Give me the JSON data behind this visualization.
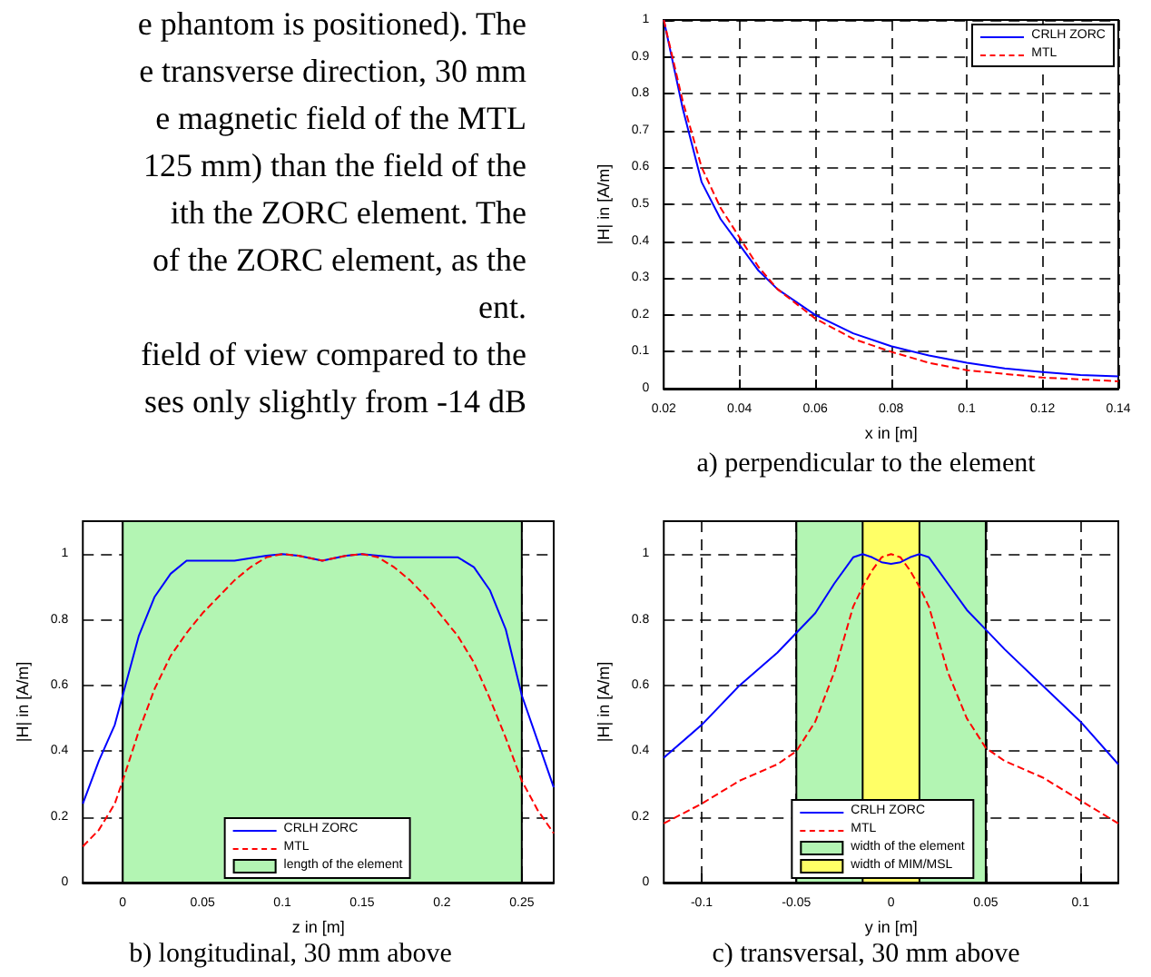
{
  "chart_data": [
    {
      "type": "other",
      "annotations": [
        "e phantom is positioned). The",
        "e transverse direction, 30 mm",
        "e magnetic field of the MTL",
        "125 mm) than the field of the",
        "ith the ZORC element. The",
        "of the ZORC element, as the",
        "ent.",
        "field of view compared to the",
        "ses only slightly from -14 dB"
      ]
    },
    {
      "type": "line",
      "title": "a) perpendicular to the element",
      "xlabel": "x in [m]",
      "ylabel": "|H| in [A/m]",
      "xlim": [
        0.02,
        0.14
      ],
      "ylim": [
        0,
        1
      ],
      "xticks": [
        0.02,
        0.04,
        0.06,
        0.08,
        0.1,
        0.12,
        0.14
      ],
      "yticks": [
        0,
        0.1,
        0.2,
        0.3,
        0.4,
        0.5,
        0.6,
        0.7,
        0.8,
        0.9,
        1
      ],
      "grid": true,
      "legend": "top right",
      "marker": "none",
      "x": [
        0.02,
        0.025,
        0.03,
        0.035,
        0.04,
        0.045,
        0.05,
        0.06,
        0.07,
        0.08,
        0.09,
        0.1,
        0.11,
        0.12,
        0.13,
        0.14
      ],
      "series": [
        {
          "name": "CRLH ZORC",
          "color": "#0000ff",
          "line_style": "solid",
          "values": [
            1.0,
            0.76,
            0.56,
            0.46,
            0.39,
            0.32,
            0.27,
            0.2,
            0.15,
            0.115,
            0.09,
            0.07,
            0.055,
            0.045,
            0.037,
            0.033
          ]
        },
        {
          "name": "MTL",
          "color": "#ff0000",
          "line_style": "dashed",
          "values": [
            1.0,
            0.78,
            0.6,
            0.49,
            0.41,
            0.33,
            0.27,
            0.19,
            0.135,
            0.1,
            0.07,
            0.05,
            0.04,
            0.03,
            0.025,
            0.02
          ]
        }
      ]
    },
    {
      "type": "line",
      "title": "b) longitudinal, 30 mm above",
      "xlabel": "z in [m]",
      "ylabel": "|H| in [A/m]",
      "xlim": [
        -0.025,
        0.27
      ],
      "ylim": [
        0,
        1.1
      ],
      "xticks": [
        0,
        0.05,
        0.1,
        0.15,
        0.2,
        0.25
      ],
      "yticks": [
        0,
        0.2,
        0.4,
        0.6,
        0.8,
        1
      ],
      "grid": true,
      "legend": "bottom",
      "marker": "none",
      "series": [
        {
          "name": "CRLH ZORC",
          "color": "#0000ff",
          "line_style": "solid",
          "x": [
            -0.025,
            -0.015,
            -0.005,
            0,
            0.01,
            0.02,
            0.03,
            0.04,
            0.06,
            0.07,
            0.09,
            0.1,
            0.11,
            0.125,
            0.14,
            0.15,
            0.17,
            0.19,
            0.21,
            0.22,
            0.23,
            0.24,
            0.25,
            0.26,
            0.27
          ],
          "values": [
            0.24,
            0.37,
            0.48,
            0.57,
            0.75,
            0.87,
            0.94,
            0.98,
            0.98,
            0.98,
            0.995,
            1.0,
            0.995,
            0.98,
            0.995,
            1.0,
            0.99,
            0.99,
            0.99,
            0.96,
            0.89,
            0.77,
            0.57,
            0.43,
            0.29
          ]
        },
        {
          "name": "MTL",
          "color": "#ff0000",
          "line_style": "dashed",
          "x": [
            -0.025,
            -0.015,
            -0.005,
            0,
            0.01,
            0.02,
            0.03,
            0.04,
            0.05,
            0.06,
            0.07,
            0.08,
            0.09,
            0.1,
            0.11,
            0.125,
            0.14,
            0.15,
            0.16,
            0.17,
            0.18,
            0.19,
            0.2,
            0.21,
            0.22,
            0.23,
            0.24,
            0.25,
            0.26,
            0.27
          ],
          "values": [
            0.11,
            0.16,
            0.24,
            0.31,
            0.46,
            0.59,
            0.69,
            0.76,
            0.82,
            0.87,
            0.92,
            0.96,
            0.99,
            1.0,
            0.995,
            0.98,
            0.995,
            1.0,
            0.99,
            0.96,
            0.92,
            0.87,
            0.81,
            0.75,
            0.67,
            0.56,
            0.44,
            0.31,
            0.22,
            0.15
          ]
        }
      ],
      "bands": [
        {
          "axis": "x",
          "from": 0,
          "to": 0.25,
          "label": "length of the element",
          "color": "#b3f5b3"
        }
      ]
    },
    {
      "type": "line",
      "title": "c) transversal, 30 mm above",
      "xlabel": "y in [m]",
      "ylabel": "|H| in [A/m]",
      "xlim": [
        -0.12,
        0.12
      ],
      "ylim": [
        0,
        1.1
      ],
      "xticks": [
        -0.1,
        -0.05,
        0,
        0.05,
        0.1
      ],
      "yticks": [
        0,
        0.2,
        0.4,
        0.6,
        0.8,
        1
      ],
      "grid": true,
      "legend": "bottom",
      "marker": "none",
      "x": [
        -0.12,
        -0.1,
        -0.08,
        -0.06,
        -0.05,
        -0.04,
        -0.03,
        -0.02,
        -0.015,
        -0.01,
        -0.005,
        0,
        0.005,
        0.01,
        0.015,
        0.02,
        0.03,
        0.04,
        0.05,
        0.06,
        0.08,
        0.1,
        0.12
      ],
      "series": [
        {
          "name": "CRLH ZORC",
          "color": "#0000ff",
          "line_style": "solid",
          "values": [
            0.38,
            0.48,
            0.6,
            0.7,
            0.76,
            0.82,
            0.91,
            0.99,
            1.0,
            0.99,
            0.975,
            0.97,
            0.975,
            0.99,
            1.0,
            0.99,
            0.91,
            0.83,
            0.77,
            0.71,
            0.6,
            0.49,
            0.36
          ]
        },
        {
          "name": "MTL",
          "color": "#ff0000",
          "line_style": "dashed",
          "values": [
            0.18,
            0.24,
            0.31,
            0.36,
            0.4,
            0.49,
            0.64,
            0.84,
            0.9,
            0.95,
            0.99,
            1.0,
            0.99,
            0.95,
            0.9,
            0.84,
            0.64,
            0.5,
            0.41,
            0.37,
            0.32,
            0.25,
            0.18
          ]
        }
      ],
      "bands": [
        {
          "axis": "x",
          "from": -0.05,
          "to": 0.05,
          "label": "width of the element",
          "color": "#b3f5b3"
        },
        {
          "axis": "x",
          "from": -0.015,
          "to": 0.015,
          "label": "width of MIM/MSL",
          "color": "#ffff66"
        }
      ]
    }
  ]
}
